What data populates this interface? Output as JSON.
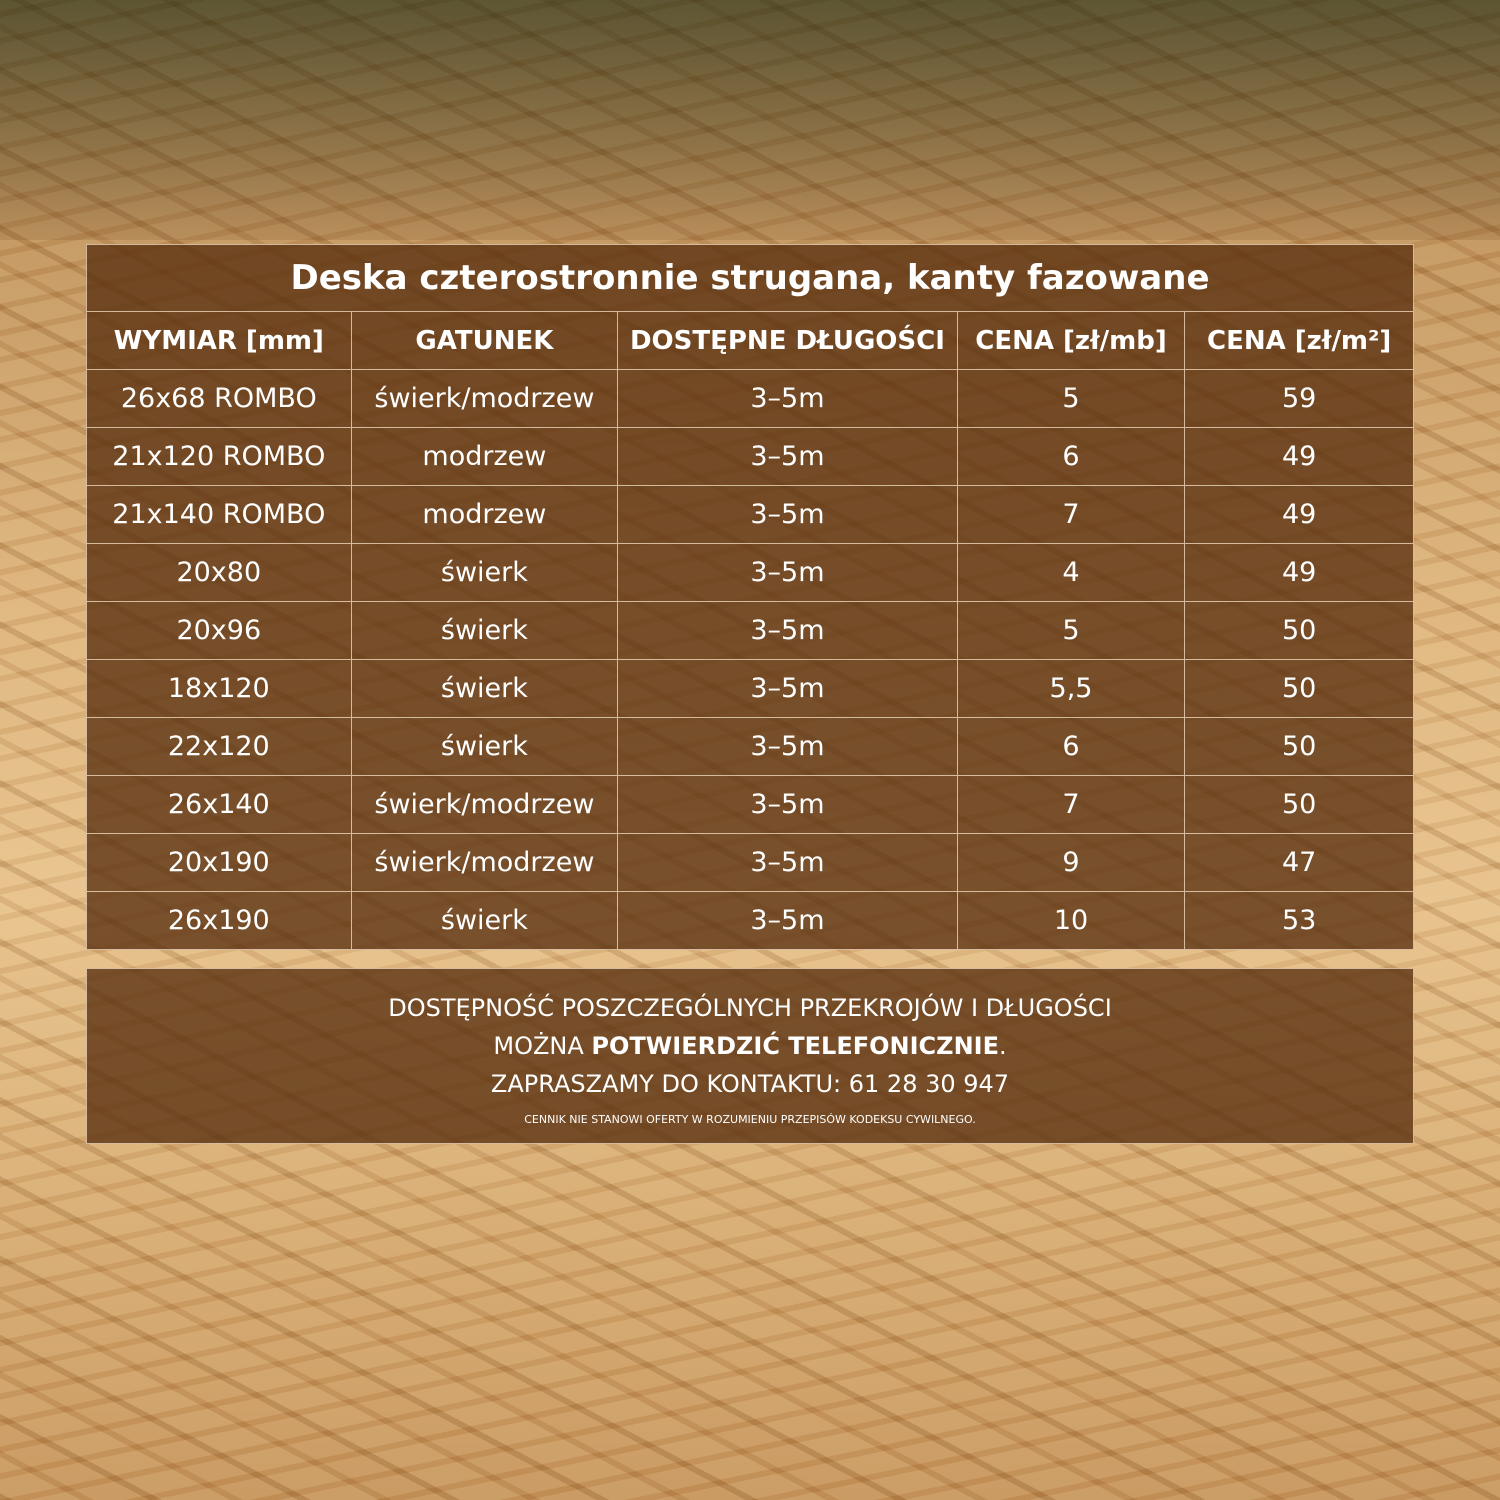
{
  "table": {
    "title": "Deska czterostronnie strugana, kanty fazowane",
    "headers": [
      "WYMIAR [mm]",
      "GATUNEK",
      "DOSTĘPNE DŁUGOŚCI",
      "CENA [zł/mb]",
      "CENA [zł/m²]"
    ],
    "rows": [
      [
        "26x68 ROMBO",
        "świerk/modrzew",
        "3–5m",
        "5",
        "59"
      ],
      [
        "21x120 ROMBO",
        "modrzew",
        "3–5m",
        "6",
        "49"
      ],
      [
        "21x140 ROMBO",
        "modrzew",
        "3–5m",
        "7",
        "49"
      ],
      [
        "20x80",
        "świerk",
        "3–5m",
        "4",
        "49"
      ],
      [
        "20x96",
        "świerk",
        "3–5m",
        "5",
        "50"
      ],
      [
        "18x120",
        "świerk",
        "3–5m",
        "5,5",
        "50"
      ],
      [
        "22x120",
        "świerk",
        "3–5m",
        "6",
        "50"
      ],
      [
        "26x140",
        "świerk/modrzew",
        "3–5m",
        "7",
        "50"
      ],
      [
        "20x190",
        "świerk/modrzew",
        "3–5m",
        "9",
        "47"
      ],
      [
        "26x190",
        "świerk",
        "3–5m",
        "10",
        "53"
      ]
    ]
  },
  "note": {
    "line1": "DOSTĘPNOŚĆ POSZCZEGÓLNYCH PRZEKROJÓW I DŁUGOŚCI",
    "line2_prefix": "MOŻNA ",
    "line2_bold": "POTWIERDZIĆ TELEFONICZNIE",
    "line2_suffix": ".",
    "line3": "ZAPRASZAMY DO KONTAKTU: 61 28 30 947",
    "disclaimer": "CENNIK NIE STANOWI OFERTY W ROZUMIENIU PRZEPISÓW KODEKSU CYWILNEGO."
  }
}
